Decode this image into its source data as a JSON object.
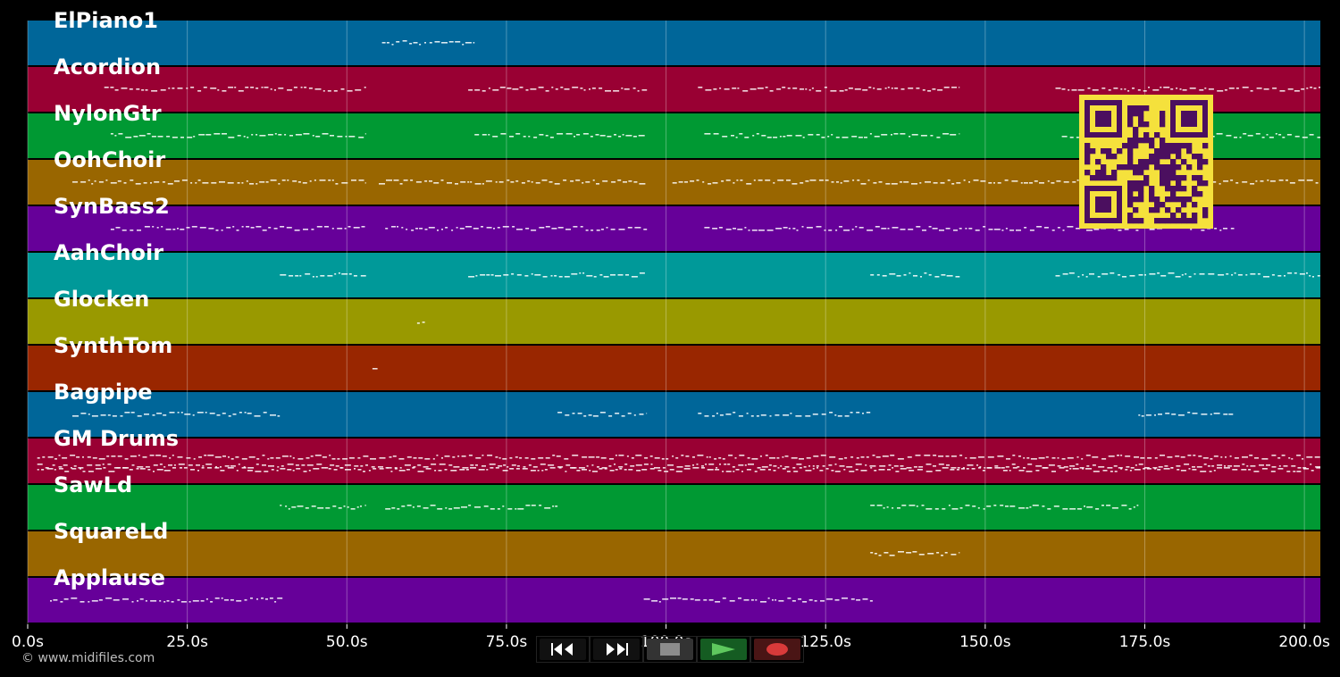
{
  "app": {
    "copyright": "© www.midifiles.com"
  },
  "tracks": [
    {
      "name": "ElPiano1",
      "color": "#006699"
    },
    {
      "name": "Acordion",
      "color": "#990033"
    },
    {
      "name": "NylonGtr",
      "color": "#009933"
    },
    {
      "name": "OohChoir",
      "color": "#996600"
    },
    {
      "name": "SynBass2",
      "color": "#660099"
    },
    {
      "name": "AahChoir",
      "color": "#009999"
    },
    {
      "name": "Glocken",
      "color": "#999900"
    },
    {
      "name": "SynthTom",
      "color": "#992600"
    },
    {
      "name": "Bagpipe",
      "color": "#006699"
    },
    {
      "name": "GM Drums",
      "color": "#990033"
    },
    {
      "name": "SawLd",
      "color": "#009933"
    },
    {
      "name": "SquareLd",
      "color": "#996600"
    },
    {
      "name": "Applause",
      "color": "#660099"
    }
  ],
  "timeline": {
    "ticks": [
      "0.0s",
      "25.0s",
      "50.0s",
      "75.0s",
      "100.0s",
      "125.0s",
      "150.0s",
      "175.0s",
      "200.0s"
    ],
    "tick_values": [
      0,
      25,
      50,
      75,
      100,
      125,
      150,
      175,
      200
    ],
    "max_seconds": 202.5
  },
  "note_segments": [
    [
      [
        55.5,
        70
      ]
    ],
    [
      [
        12,
        53
      ],
      [
        69,
        97
      ],
      [
        105,
        146
      ],
      [
        161,
        202.5
      ]
    ],
    [
      [
        13,
        53
      ],
      [
        70,
        97
      ],
      [
        106,
        146
      ],
      [
        162,
        202.5
      ]
    ],
    [
      [
        7,
        53
      ],
      [
        55,
        97
      ],
      [
        101,
        202.5
      ]
    ],
    [
      [
        13,
        53
      ],
      [
        56,
        97
      ],
      [
        106,
        189
      ]
    ],
    [
      [
        39.5,
        53
      ],
      [
        69,
        97
      ],
      [
        132,
        146
      ],
      [
        161,
        202.5
      ]
    ],
    [
      [
        61,
        62.5
      ]
    ],
    [
      [
        54,
        54.8
      ]
    ],
    [
      [
        7,
        39.5
      ],
      [
        83,
        97
      ],
      [
        105,
        132
      ],
      [
        174,
        189
      ]
    ],
    [
      [
        1.5,
        202.5
      ]
    ],
    [
      [
        39.5,
        53
      ],
      [
        56,
        69
      ],
      [
        69,
        83
      ],
      [
        132,
        174
      ]
    ],
    [
      [
        132,
        146
      ]
    ],
    [
      [
        3.5,
        40
      ],
      [
        96.5,
        132.5
      ]
    ]
  ],
  "transport": {
    "buttons": [
      {
        "name": "rewind-button",
        "icon": "rewind-icon"
      },
      {
        "name": "fast-forward-button",
        "icon": "fast-forward-icon"
      },
      {
        "name": "stop-button",
        "icon": "stop-icon"
      },
      {
        "name": "play-button",
        "icon": "play-icon"
      },
      {
        "name": "record-button",
        "icon": "record-icon"
      }
    ]
  },
  "qr_code": {
    "icon": "qr-code-icon",
    "fg": "#4b0f5f",
    "bg": "#f5e13c"
  }
}
